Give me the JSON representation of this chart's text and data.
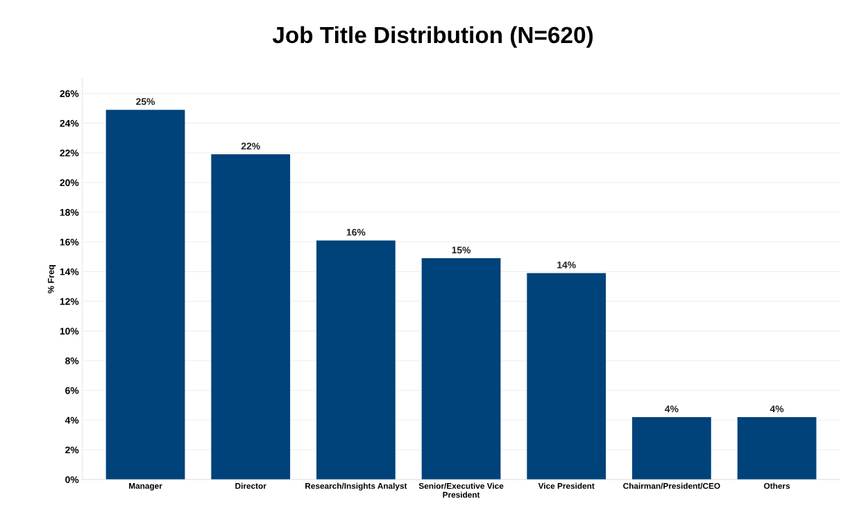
{
  "chart_data": {
    "type": "bar",
    "title": "Job Title Distribution (N=620)",
    "ylabel": "% Freq",
    "categories": [
      "Manager",
      "Director",
      "Research/Insights Analyst",
      "Senior/Executive Vice President",
      "Vice President",
      "Chairman/President/CEO",
      "Others"
    ],
    "values": [
      24.9,
      21.9,
      16.1,
      14.9,
      13.9,
      4.2,
      4.2
    ],
    "value_labels": [
      "25%",
      "22%",
      "16%",
      "15%",
      "14%",
      "4%",
      "4%"
    ],
    "color": "#00427a",
    "ylim": [
      0,
      27
    ],
    "yticks": [
      {
        "value": 0,
        "label": "0%"
      },
      {
        "value": 2,
        "label": "2%"
      },
      {
        "value": 4,
        "label": "4%"
      },
      {
        "value": 6,
        "label": "6%"
      },
      {
        "value": 8,
        "label": "8%"
      },
      {
        "value": 10,
        "label": "10%"
      },
      {
        "value": 12,
        "label": "12%"
      },
      {
        "value": 14,
        "label": "14%"
      },
      {
        "value": 16,
        "label": "16%"
      },
      {
        "value": 18,
        "label": "18%"
      },
      {
        "value": 20,
        "label": "20%"
      },
      {
        "value": 22,
        "label": "22%"
      },
      {
        "value": 24,
        "label": "24%"
      },
      {
        "value": 26,
        "label": "26%"
      }
    ],
    "grid": "y"
  }
}
